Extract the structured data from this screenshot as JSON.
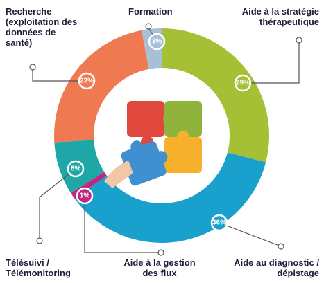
{
  "chart_data": {
    "type": "pie",
    "categories": [
      "Formation",
      "Aide à la stratégie thérapeutique",
      "Aide à la gestion des flux",
      "Télésuivi / Télémonitoring",
      "Recherche (exploitation des données de santé)",
      "Aide au diagnostic / dépistage"
    ],
    "values": [
      3,
      29,
      1,
      8,
      23,
      36
    ],
    "value_labels": [
      "3%",
      "29%",
      "1%",
      "8%",
      "23%",
      "36%"
    ],
    "colors": [
      "#a9bfd6",
      "#a6c035",
      "#c0287f",
      "#1fa7a7",
      "#ef7a52",
      "#1aa0cc"
    ]
  }
}
